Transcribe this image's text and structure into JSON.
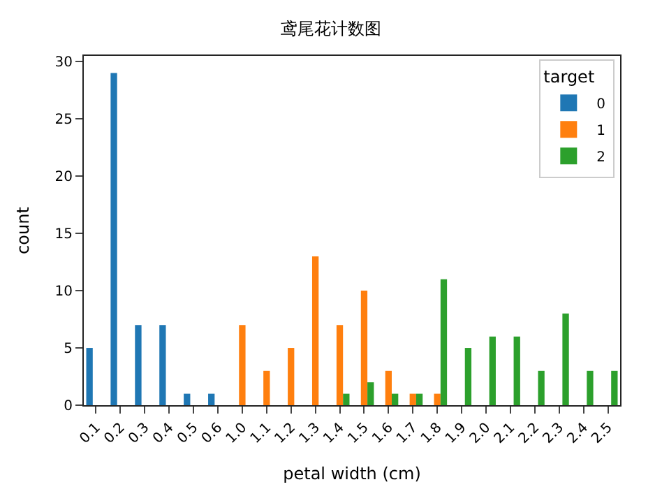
{
  "chart_data": {
    "type": "bar",
    "title": "鸢尾花计数图",
    "xlabel": "petal width (cm)",
    "ylabel": "count",
    "legend_title": "target",
    "legend": "top right",
    "grid": false,
    "categories": [
      "0.1",
      "0.2",
      "0.3",
      "0.4",
      "0.5",
      "0.6",
      "1.0",
      "1.1",
      "1.2",
      "1.3",
      "1.4",
      "1.5",
      "1.6",
      "1.7",
      "1.8",
      "1.9",
      "2.0",
      "2.1",
      "2.2",
      "2.3",
      "2.4",
      "2.5"
    ],
    "ylim": [
      0,
      30.5
    ],
    "yticks": [
      0,
      5,
      10,
      15,
      20,
      25,
      30
    ],
    "series": [
      {
        "name": "0",
        "color": "#1f77b4",
        "values": [
          5,
          29,
          7,
          7,
          1,
          1,
          null,
          null,
          null,
          null,
          null,
          null,
          null,
          null,
          null,
          null,
          null,
          null,
          null,
          null,
          null,
          null
        ]
      },
      {
        "name": "1",
        "color": "#ff7f0e",
        "values": [
          null,
          null,
          null,
          null,
          null,
          null,
          7,
          3,
          5,
          13,
          7,
          10,
          3,
          1,
          1,
          null,
          null,
          null,
          null,
          null,
          null,
          null
        ]
      },
      {
        "name": "2",
        "color": "#2ca02c",
        "values": [
          null,
          null,
          null,
          null,
          null,
          null,
          null,
          null,
          null,
          null,
          1,
          2,
          1,
          1,
          11,
          5,
          6,
          6,
          3,
          8,
          3,
          3
        ]
      }
    ]
  }
}
